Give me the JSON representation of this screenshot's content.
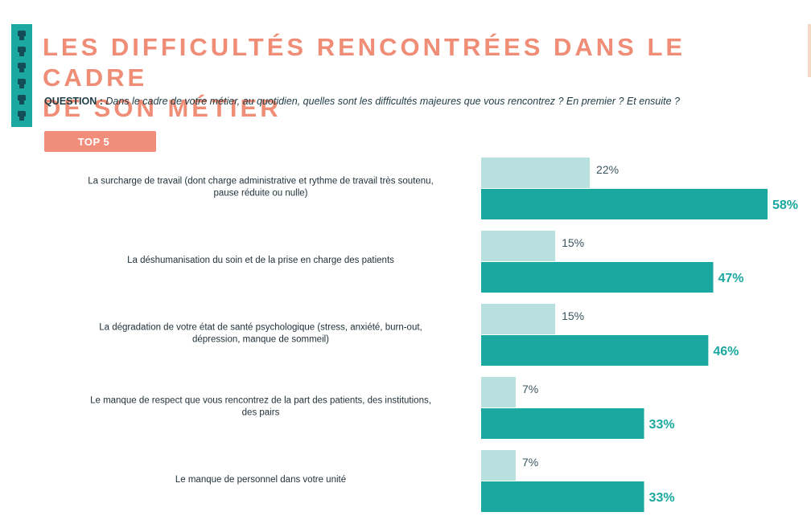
{
  "header": {
    "title": "LES DIFFICULTÉS RENCONTRÉES DANS LE CADRE\nDE SON MÉTIER",
    "question_label": "QUESTION :",
    "question_text": " Dans le cadre de votre métier, au quotidien, quelles sont les difficultés majeures que vous rencontrez ? En premier ? Et ensuite ?",
    "badge": "TOP 5"
  },
  "colors": {
    "title": "#ef8d76",
    "badge": "#f08e7b",
    "series_first": "#b8e0df",
    "series_total": "#1aa8a0",
    "label_first": "#3a5560",
    "label_total": "#1aa8a0"
  },
  "chart_data": {
    "type": "bar",
    "orientation": "horizontal",
    "categories": [
      "La surcharge de travail (dont charge administrative et rythme de travail très soutenu, pause réduite ou nulle)",
      "La déshumanisation du soin et de la prise en charge des patients",
      "La dégradation de votre état de santé psychologique (stress, anxiété, burn-out, dépression, manque de sommeil)",
      "Le manque de respect que vous rencontrez de la part des patients, des institutions, des pairs",
      "Le manque de personnel dans votre unité"
    ],
    "series": [
      {
        "values": [
          22,
          15,
          15,
          7,
          7
        ],
        "labels": [
          "22%",
          "15%",
          "15%",
          "7%",
          "7%"
        ]
      },
      {
        "values": [
          58,
          47,
          46,
          33,
          33
        ],
        "labels": [
          "58%",
          "47%",
          "46%",
          "33%",
          "33%"
        ]
      }
    ],
    "xlim": [
      0,
      58
    ],
    "grid": false
  }
}
